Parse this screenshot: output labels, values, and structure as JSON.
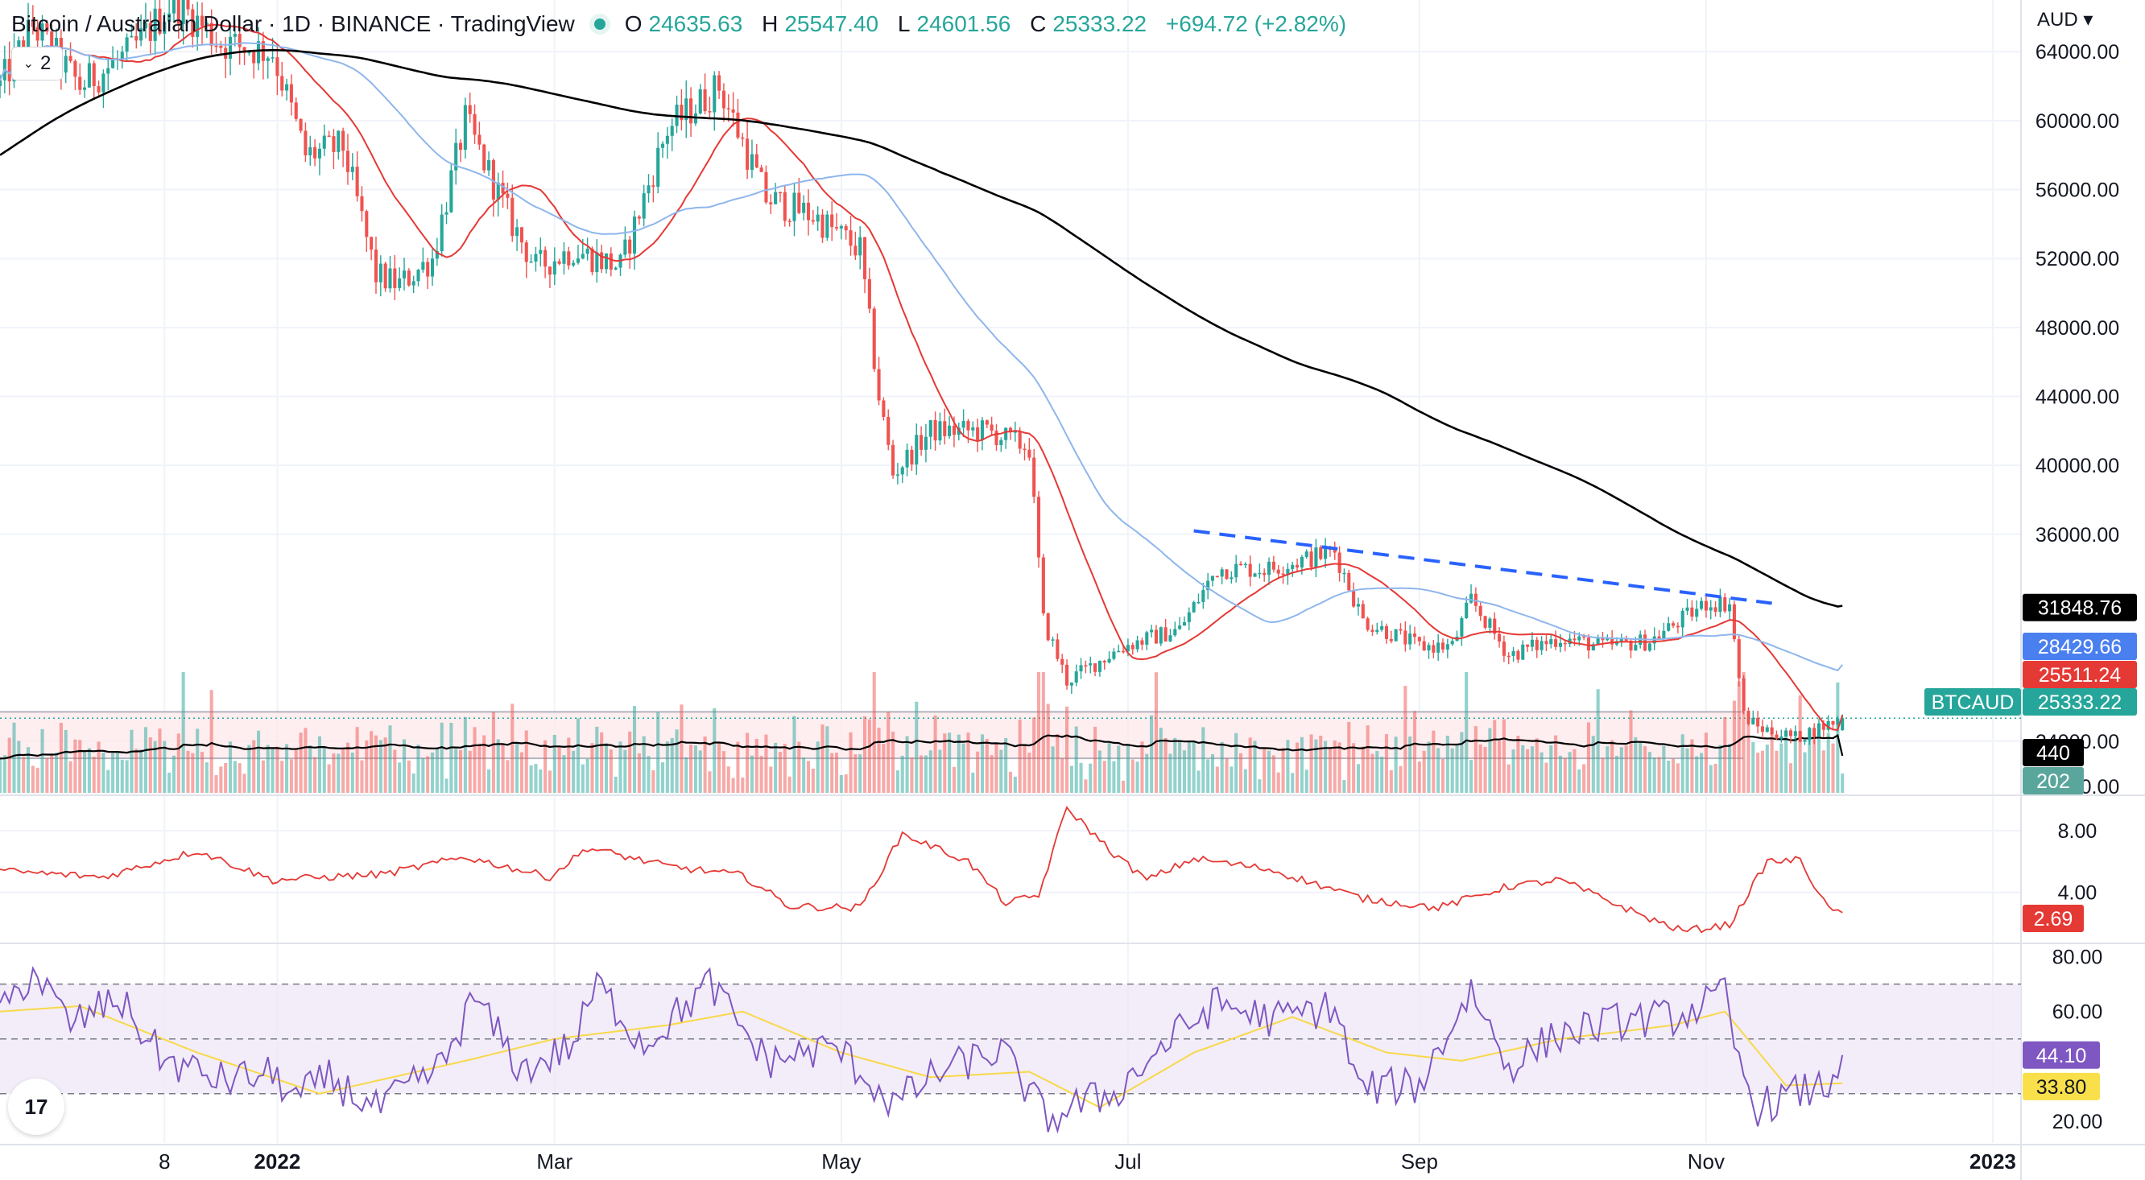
{
  "legend": {
    "title": "Bitcoin / Australian Dollar · 1D · BINANCE · TradingView",
    "o_label": "O",
    "o": "24635.63",
    "h_label": "H",
    "h": "25547.40",
    "l_label": "L",
    "l": "24601.56",
    "c_label": "C",
    "c": "25333.22",
    "change": "+694.72 (+2.82%)"
  },
  "collapse_label": "2",
  "currency_label": "AUD",
  "logo_text": "17",
  "colors": {
    "up": "#26a69a",
    "down": "#ef5350",
    "ma_short": "#e53935",
    "ma_mid": "#8fb6ec",
    "ma_long": "#000000",
    "trend": "#2962ff",
    "rsi": "#7e57c2",
    "rsi_signal": "#f9d84a",
    "atr": "#e53935",
    "grid": "#f0f3fa"
  },
  "chart_data": [
    {
      "type": "candlestick",
      "title": "Bitcoin / Australian Dollar · 1D · BINANCE · TradingView",
      "y_axis_ticks": [
        "64000.00",
        "60000.00",
        "56000.00",
        "52000.00",
        "48000.00",
        "44000.00",
        "40000.00",
        "36000.00",
        "24000.00"
      ],
      "ylim": [
        21000,
        67000
      ],
      "x_axis_ticks": [
        "8",
        "2022",
        "Mar",
        "May",
        "Jul",
        "Sep",
        "Nov",
        "2023"
      ],
      "xlim": [
        "2021-11-03",
        "2023-01-07"
      ],
      "anchors": [
        [
          "2021-11-03",
          62000
        ],
        [
          "2021-11-10",
          65500
        ],
        [
          "2021-11-20",
          62000
        ],
        [
          "2021-12-01",
          64000
        ],
        [
          "2021-12-10",
          67000
        ],
        [
          "2021-12-20",
          64500
        ],
        [
          "2021-12-31",
          64000
        ],
        [
          "2022-01-07",
          58000
        ],
        [
          "2022-01-15",
          58500
        ],
        [
          "2022-01-22",
          51000
        ],
        [
          "2022-01-27",
          50500
        ],
        [
          "2022-02-03",
          52000
        ],
        [
          "2022-02-10",
          60000
        ],
        [
          "2022-02-20",
          54000
        ],
        [
          "2022-02-25",
          51500
        ],
        [
          "2022-03-05",
          52500
        ],
        [
          "2022-03-15",
          51500
        ],
        [
          "2022-03-25",
          59500
        ],
        [
          "2022-04-05",
          62000
        ],
        [
          "2022-04-15",
          55500
        ],
        [
          "2022-04-25",
          54500
        ],
        [
          "2022-05-05",
          52500
        ],
        [
          "2022-05-09",
          44000
        ],
        [
          "2022-05-12",
          39500
        ],
        [
          "2022-05-20",
          42000
        ],
        [
          "2022-06-01",
          42000
        ],
        [
          "2022-06-10",
          41000
        ],
        [
          "2022-06-13",
          31000
        ],
        [
          "2022-06-18",
          27500
        ],
        [
          "2022-06-30",
          29500
        ],
        [
          "2022-07-12",
          30500
        ],
        [
          "2022-07-20",
          34000
        ],
        [
          "2022-07-31",
          34000
        ],
        [
          "2022-08-14",
          35000
        ],
        [
          "2022-08-20",
          31000
        ],
        [
          "2022-09-01",
          29500
        ],
        [
          "2022-09-08",
          29500
        ],
        [
          "2022-09-12",
          32200
        ],
        [
          "2022-09-20",
          29000
        ],
        [
          "2022-10-01",
          30000
        ],
        [
          "2022-10-10",
          29500
        ],
        [
          "2022-10-20",
          29800
        ],
        [
          "2022-11-01",
          32000
        ],
        [
          "2022-11-06",
          32000
        ],
        [
          "2022-11-09",
          25500
        ],
        [
          "2022-11-12",
          24800
        ],
        [
          "2022-11-20",
          24200
        ],
        [
          "2022-11-30",
          25333
        ]
      ],
      "moving_averages": [
        {
          "period": 20,
          "last": "25511.24"
        },
        {
          "period": 50,
          "last": "28429.66"
        },
        {
          "period": 200,
          "last": "31848.76"
        }
      ],
      "trendline": [
        [
          "2022-07-15",
          36200
        ],
        [
          "2022-11-15",
          32000
        ]
      ],
      "price_labels": {
        "symbol": "BTCAUD",
        "last": "25333.22",
        "ma20": "25511.24",
        "ma50": "28429.66",
        "ma200": "31848.76"
      }
    },
    {
      "type": "bar",
      "title": "Volume",
      "y_axis_ticks": [
        "0.00"
      ],
      "last_volume": "202",
      "volume_ma_last": "440"
    },
    {
      "type": "line",
      "title": "ATR",
      "y_axis_ticks": [
        "8.00",
        "4.00"
      ],
      "ylim": [
        0.8,
        10.2
      ],
      "last": "2.69",
      "anchors": [
        [
          "2021-11-03",
          5.4
        ],
        [
          "2021-11-25",
          5.0
        ],
        [
          "2021-12-15",
          6.7
        ],
        [
          "2021-12-31",
          4.8
        ],
        [
          "2022-01-24",
          5.2
        ],
        [
          "2022-02-10",
          6.3
        ],
        [
          "2022-02-28",
          5.0
        ],
        [
          "2022-03-08",
          6.9
        ],
        [
          "2022-03-25",
          5.7
        ],
        [
          "2022-04-10",
          5.1
        ],
        [
          "2022-04-20",
          3.1
        ],
        [
          "2022-05-05",
          3.0
        ],
        [
          "2022-05-14",
          7.8
        ],
        [
          "2022-05-28",
          6.0
        ],
        [
          "2022-06-05",
          3.3
        ],
        [
          "2022-06-12",
          3.8
        ],
        [
          "2022-06-18",
          9.5
        ],
        [
          "2022-06-28",
          6.5
        ],
        [
          "2022-07-05",
          4.8
        ],
        [
          "2022-07-15",
          6.2
        ],
        [
          "2022-07-31",
          5.5
        ],
        [
          "2022-08-20",
          3.6
        ],
        [
          "2022-09-05",
          3.0
        ],
        [
          "2022-09-20",
          4.4
        ],
        [
          "2022-10-01",
          4.8
        ],
        [
          "2022-10-20",
          2.3
        ],
        [
          "2022-10-27",
          1.5
        ],
        [
          "2022-11-06",
          1.9
        ],
        [
          "2022-11-14",
          6.0
        ],
        [
          "2022-11-21",
          6.1
        ],
        [
          "2022-11-27",
          2.9
        ],
        [
          "2022-11-30",
          2.69
        ]
      ]
    },
    {
      "type": "line",
      "title": "RSI",
      "y_axis_ticks": [
        "80.00",
        "60.00",
        "20.00"
      ],
      "bands": [
        70,
        50,
        30
      ],
      "ylim": [
        12,
        84
      ],
      "last": "44.10",
      "signal_last": "33.80",
      "anchors": [
        [
          "2021-11-03",
          58
        ],
        [
          "2021-11-10",
          75
        ],
        [
          "2021-11-18",
          55
        ],
        [
          "2021-11-28",
          65
        ],
        [
          "2021-12-08",
          42
        ],
        [
          "2021-12-20",
          35
        ],
        [
          "2021-12-31",
          37
        ],
        [
          "2022-01-05",
          28
        ],
        [
          "2022-01-12",
          36
        ],
        [
          "2022-01-22",
          24
        ],
        [
          "2022-02-05",
          40
        ],
        [
          "2022-02-12",
          65
        ],
        [
          "2022-02-22",
          38
        ],
        [
          "2022-03-05",
          48
        ],
        [
          "2022-03-10",
          70
        ],
        [
          "2022-03-20",
          48
        ],
        [
          "2022-04-03",
          70
        ],
        [
          "2022-04-15",
          42
        ],
        [
          "2022-04-30",
          47
        ],
        [
          "2022-05-12",
          26
        ],
        [
          "2022-05-22",
          38
        ],
        [
          "2022-06-04",
          46
        ],
        [
          "2022-06-14",
          20
        ],
        [
          "2022-06-20",
          26
        ],
        [
          "2022-06-28",
          30
        ],
        [
          "2022-07-10",
          50
        ],
        [
          "2022-07-20",
          63
        ],
        [
          "2022-08-01",
          57
        ],
        [
          "2022-08-14",
          62
        ],
        [
          "2022-08-19",
          32
        ],
        [
          "2022-09-01",
          33
        ],
        [
          "2022-09-12",
          68
        ],
        [
          "2022-09-20",
          40
        ],
        [
          "2022-10-01",
          52
        ],
        [
          "2022-10-15",
          57
        ],
        [
          "2022-10-26",
          58
        ],
        [
          "2022-11-05",
          66
        ],
        [
          "2022-11-08",
          40
        ],
        [
          "2022-11-12",
          25
        ],
        [
          "2022-11-20",
          30
        ],
        [
          "2022-11-27",
          33
        ],
        [
          "2022-11-30",
          44.1
        ]
      ],
      "signal_anchors": [
        [
          "2021-11-03",
          60
        ],
        [
          "2021-11-20",
          62
        ],
        [
          "2021-12-15",
          45
        ],
        [
          "2022-01-10",
          30
        ],
        [
          "2022-02-10",
          42
        ],
        [
          "2022-03-01",
          50
        ],
        [
          "2022-03-25",
          55
        ],
        [
          "2022-04-10",
          60
        ],
        [
          "2022-05-01",
          45
        ],
        [
          "2022-05-20",
          36
        ],
        [
          "2022-06-10",
          38
        ],
        [
          "2022-06-25",
          25
        ],
        [
          "2022-07-15",
          45
        ],
        [
          "2022-08-05",
          58
        ],
        [
          "2022-08-25",
          45
        ],
        [
          "2022-09-10",
          42
        ],
        [
          "2022-10-01",
          50
        ],
        [
          "2022-10-25",
          55
        ],
        [
          "2022-11-05",
          60
        ],
        [
          "2022-11-18",
          33
        ],
        [
          "2022-11-30",
          33.8
        ]
      ]
    }
  ]
}
